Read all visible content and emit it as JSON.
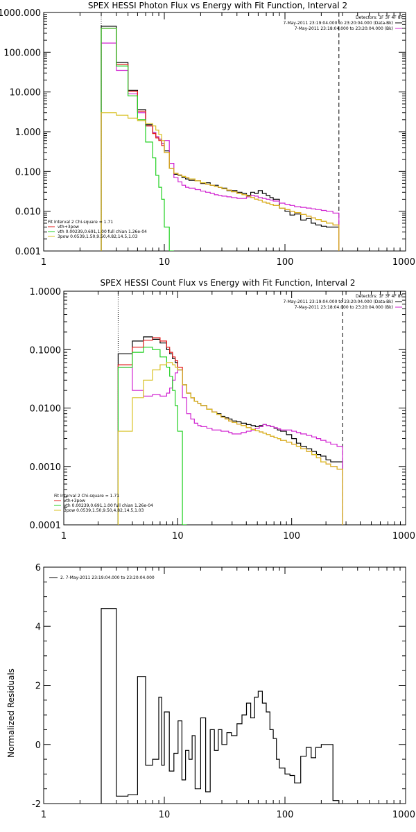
{
  "chart_data": [
    {
      "type": "line",
      "title": "SPEX HESSI Photon Flux vs Energy with Fit Function, Interval 2",
      "xscale": "log",
      "yscale": "log",
      "xlim": [
        1,
        1000
      ],
      "ylim": [
        0.001,
        1000
      ],
      "x_ticks": [
        1,
        10,
        100,
        1000
      ],
      "x_tick_labels": [
        "1",
        "10",
        "100",
        "1000"
      ],
      "y_ticks": [
        0.001,
        0.01,
        0.1,
        1,
        10,
        100,
        1000
      ],
      "y_tick_labels": [
        "0.001",
        "0.010",
        "0.100",
        "1.000",
        "10.000",
        "100.000",
        "1000.000"
      ],
      "vlines": [
        {
          "x": 3,
          "style": "dotted"
        },
        {
          "x": 280,
          "style": "dashed"
        }
      ],
      "detectors_text": "Detectors: 1F 3F 4F 8F",
      "time_labels": [
        {
          "text": "7-May-2011 23:19:04.000 to 23:20:04.000 (Data-Bk)",
          "color": "#000000"
        },
        {
          "text": "7-May-2011 23:18:04.000 to 23:20:04.000 (Bk)",
          "color": "#d020d0"
        }
      ],
      "fit_header": "Fit Interval  2   Chi-square = 1.71",
      "legend": [
        {
          "label": "vth+3pow",
          "color": "#e01818"
        },
        {
          "label": "vth 0.00239,0.691,1.00  full chian 1.26e-04",
          "color": "#20d020"
        },
        {
          "label": "3pow 0.0539,1.50,9.50,4.82,14.5,1.03",
          "color": "#d8c020"
        }
      ],
      "bin_edges": [
        3,
        3.5,
        4,
        4.5,
        5,
        5.5,
        6,
        6.5,
        7,
        7.5,
        8,
        8.5,
        9,
        9.5,
        10,
        11,
        12,
        13,
        14,
        15,
        16,
        18,
        20,
        22,
        24,
        26,
        28,
        30,
        33,
        36,
        40,
        44,
        48,
        52,
        56,
        60,
        65,
        70,
        75,
        80,
        90,
        100,
        110,
        120,
        135,
        150,
        165,
        180,
        200,
        220,
        250,
        280
      ],
      "series": [
        {
          "name": "Data-Bk",
          "color": "#000000",
          "values": [
            450,
            450,
            55,
            55,
            11,
            11,
            3.6,
            3.6,
            1.5,
            1.5,
            0.95,
            0.75,
            0.65,
            0.5,
            0.33,
            0.12,
            0.085,
            0.08,
            0.07,
            0.065,
            0.06,
            0.058,
            0.05,
            0.052,
            0.045,
            0.045,
            0.04,
            0.038,
            0.033,
            0.033,
            0.03,
            0.028,
            0.025,
            0.03,
            0.028,
            0.033,
            0.028,
            0.025,
            0.022,
            0.02,
            0.012,
            0.01,
            0.008,
            0.0085,
            0.006,
            0.0065,
            0.005,
            0.0045,
            0.0042,
            0.004,
            0.004
          ]
        },
        {
          "name": "Bk",
          "color": "#d020d0",
          "values": [
            170,
            170,
            35,
            35,
            9,
            9,
            3,
            3,
            1.4,
            1.4,
            0.95,
            0.75,
            0.65,
            0.5,
            0.6,
            0.16,
            0.07,
            0.055,
            0.045,
            0.04,
            0.038,
            0.035,
            0.032,
            0.03,
            0.028,
            0.026,
            0.025,
            0.024,
            0.023,
            0.022,
            0.021,
            0.021,
            0.023,
            0.025,
            0.024,
            0.022,
            0.021,
            0.02,
            0.019,
            0.018,
            0.016,
            0.015,
            0.014,
            0.013,
            0.0125,
            0.012,
            0.0115,
            0.011,
            0.0105,
            0.01,
            0.009
          ]
        },
        {
          "name": "vth+3pow",
          "color": "#e01818",
          "values": [
            400,
            400,
            50,
            50,
            10.5,
            10.5,
            3.3,
            3.3,
            1.4,
            1.4,
            0.9,
            0.7,
            0.6,
            0.45,
            0.3,
            0.12,
            0.09,
            0.082,
            0.075,
            0.07,
            0.065,
            0.058,
            0.052,
            0.048,
            0.045,
            0.042,
            0.04,
            0.037,
            0.034,
            0.031,
            0.028,
            0.026,
            0.024,
            0.022,
            0.02,
            0.019,
            0.017,
            0.016,
            0.015,
            0.014,
            0.012,
            0.011,
            0.01,
            0.0092,
            0.0083,
            0.0075,
            0.0068,
            0.0062,
            0.0056,
            0.005,
            0.0045
          ]
        },
        {
          "name": "vth",
          "color": "#20d020",
          "values": [
            400,
            400,
            45,
            45,
            8,
            8,
            2,
            2,
            0.55,
            0.55,
            0.22,
            0.08,
            0.04,
            0.02,
            0.004,
            0.001
          ]
        },
        {
          "name": "3pow",
          "color": "#d8c020",
          "values": [
            3,
            3,
            2.6,
            2.6,
            2.2,
            2.2,
            1.9,
            1.9,
            1.6,
            1.6,
            1.4,
            1.1,
            0.85,
            0.6,
            0.3,
            0.12,
            0.09,
            0.082,
            0.075,
            0.07,
            0.065,
            0.058,
            0.052,
            0.048,
            0.045,
            0.042,
            0.04,
            0.037,
            0.034,
            0.031,
            0.028,
            0.026,
            0.024,
            0.022,
            0.02,
            0.019,
            0.017,
            0.016,
            0.015,
            0.014,
            0.012,
            0.011,
            0.01,
            0.0092,
            0.0083,
            0.0075,
            0.0068,
            0.0062,
            0.0056,
            0.005,
            0.0045
          ]
        }
      ]
    },
    {
      "type": "line",
      "title": "SPEX HESSI Count Flux vs Energy with Fit Function, Interval 2",
      "xscale": "log",
      "yscale": "log",
      "xlim": [
        1,
        1000
      ],
      "ylim": [
        0.0001,
        1
      ],
      "x_ticks": [
        1,
        10,
        100,
        1000
      ],
      "x_tick_labels": [
        "1",
        "10",
        "100",
        "1000"
      ],
      "y_ticks": [
        0.0001,
        0.001,
        0.01,
        0.1,
        1
      ],
      "y_tick_labels": [
        "0.0001",
        "0.0010",
        "0.0100",
        "0.1000",
        "1.0000"
      ],
      "vlines": [
        {
          "x": 3,
          "style": "dotted"
        },
        {
          "x": 280,
          "style": "dashed"
        }
      ],
      "detectors_text": "Detectors: 1F 3F 4F 8F",
      "time_labels": [
        {
          "text": "7-May-2011 23:19:04.000 to 23:20:04.000 (Data-Bk)",
          "color": "#000000"
        },
        {
          "text": "7-May-2011 23:18:04.000 to 23:20:04.000 (Bk)",
          "color": "#d020d0"
        }
      ],
      "fit_header": "Fit Interval  2   Chi-square = 1.71",
      "legend": [
        {
          "label": "vth+3pow",
          "color": "#e01818"
        },
        {
          "label": "vth 0.00239,0.691,1.00  full chian 1.26e-04",
          "color": "#20d020"
        },
        {
          "label": "3pow 0.0539,1.50,9.50,4.82,14.5,1.03",
          "color": "#d8c020"
        }
      ],
      "bin_edges": [
        3,
        3.5,
        4,
        4.5,
        5,
        5.5,
        6,
        6.5,
        7,
        7.5,
        8,
        8.5,
        9,
        9.5,
        10,
        11,
        12,
        13,
        14,
        15,
        16,
        18,
        20,
        22,
        24,
        26,
        28,
        30,
        33,
        36,
        40,
        44,
        48,
        52,
        56,
        60,
        65,
        70,
        75,
        80,
        90,
        100,
        110,
        120,
        135,
        150,
        165,
        180,
        200,
        220,
        250,
        280
      ],
      "series": [
        {
          "name": "Data-Bk",
          "color": "#000000",
          "values": [
            0.085,
            0.085,
            0.14,
            0.14,
            0.165,
            0.165,
            0.15,
            0.15,
            0.13,
            0.13,
            0.1,
            0.085,
            0.07,
            0.06,
            0.045,
            0.025,
            0.018,
            0.015,
            0.013,
            0.012,
            0.011,
            0.0095,
            0.0085,
            0.008,
            0.0072,
            0.0068,
            0.0065,
            0.006,
            0.0058,
            0.0055,
            0.0052,
            0.005,
            0.0048,
            0.005,
            0.0052,
            0.005,
            0.0048,
            0.0045,
            0.0042,
            0.004,
            0.0035,
            0.003,
            0.0025,
            0.0022,
            0.002,
            0.0018,
            0.0016,
            0.0015,
            0.0013,
            0.0012,
            0.0012
          ]
        },
        {
          "name": "Bk",
          "color": "#d020d0",
          "values": [
            0.05,
            0.05,
            0.02,
            0.02,
            0.016,
            0.016,
            0.017,
            0.017,
            0.016,
            0.016,
            0.018,
            0.022,
            0.03,
            0.04,
            0.045,
            0.015,
            0.008,
            0.0065,
            0.0055,
            0.005,
            0.0048,
            0.0045,
            0.0042,
            0.0042,
            0.004,
            0.004,
            0.0038,
            0.0036,
            0.0036,
            0.0038,
            0.004,
            0.0042,
            0.0045,
            0.0048,
            0.0052,
            0.005,
            0.0048,
            0.0046,
            0.0044,
            0.0042,
            0.0042,
            0.004,
            0.0038,
            0.0036,
            0.0034,
            0.0032,
            0.003,
            0.0028,
            0.0026,
            0.0024,
            0.0022
          ]
        },
        {
          "name": "vth+3pow",
          "color": "#e01818",
          "values": [
            0.055,
            0.055,
            0.11,
            0.11,
            0.145,
            0.145,
            0.16,
            0.16,
            0.14,
            0.14,
            0.11,
            0.09,
            0.075,
            0.065,
            0.05,
            0.025,
            0.018,
            0.015,
            0.013,
            0.012,
            0.011,
            0.0095,
            0.0085,
            0.0078,
            0.007,
            0.0065,
            0.006,
            0.0057,
            0.0053,
            0.005,
            0.0046,
            0.0043,
            0.0041,
            0.0039,
            0.0037,
            0.0035,
            0.0033,
            0.0031,
            0.003,
            0.0028,
            0.0026,
            0.0024,
            0.0022,
            0.002,
            0.0018,
            0.0016,
            0.0014,
            0.0012,
            0.0011,
            0.001,
            0.0009
          ]
        },
        {
          "name": "vth",
          "color": "#20d020",
          "values": [
            0.05,
            0.05,
            0.09,
            0.09,
            0.11,
            0.11,
            0.1,
            0.1,
            0.075,
            0.075,
            0.05,
            0.035,
            0.02,
            0.011,
            0.004,
            0.0001
          ]
        },
        {
          "name": "3pow",
          "color": "#d8c020",
          "values": [
            0.004,
            0.004,
            0.015,
            0.015,
            0.03,
            0.03,
            0.045,
            0.045,
            0.055,
            0.055,
            0.06,
            0.06,
            0.055,
            0.05,
            0.045,
            0.025,
            0.018,
            0.015,
            0.013,
            0.012,
            0.011,
            0.0095,
            0.0085,
            0.0078,
            0.007,
            0.0065,
            0.006,
            0.0057,
            0.0053,
            0.005,
            0.0046,
            0.0043,
            0.0041,
            0.0039,
            0.0037,
            0.0035,
            0.0033,
            0.0031,
            0.003,
            0.0028,
            0.0026,
            0.0024,
            0.0022,
            0.002,
            0.0018,
            0.0016,
            0.0014,
            0.0012,
            0.0011,
            0.001,
            0.0009
          ]
        }
      ]
    },
    {
      "type": "line",
      "title": "",
      "ylabel": "Normalized Residuals",
      "xscale": "log",
      "yscale": "linear",
      "xlim": [
        1,
        1000
      ],
      "ylim": [
        -2,
        6
      ],
      "x_ticks": [
        1,
        10,
        100,
        1000
      ],
      "x_tick_labels": [
        "1",
        "10",
        "100",
        "1000"
      ],
      "y_ticks": [
        -2,
        0,
        2,
        4,
        6
      ],
      "y_tick_labels": [
        "-2",
        "0",
        "2",
        "4",
        "6"
      ],
      "legend": [
        {
          "label": "2. 7-May-2011 23:19:04.000 to 23:20:04.000",
          "color": "#000000"
        }
      ],
      "bin_edges": [
        3,
        4,
        5,
        6,
        6.5,
        7,
        7.5,
        8,
        8.5,
        9,
        9.5,
        10,
        11,
        12,
        13,
        14,
        15,
        16,
        17,
        18,
        20,
        22,
        24,
        26,
        28,
        30,
        33,
        36,
        40,
        44,
        48,
        52,
        56,
        60,
        65,
        70,
        75,
        80,
        85,
        90,
        100,
        110,
        120,
        135,
        150,
        165,
        180,
        200,
        220,
        250,
        280
      ],
      "series": [
        {
          "name": "Residuals",
          "color": "#000000",
          "values": [
            4.6,
            -1.75,
            -1.7,
            2.3,
            2.3,
            -0.7,
            -0.7,
            -0.5,
            -0.5,
            1.6,
            -0.7,
            1.1,
            -0.9,
            -0.3,
            0.8,
            -1.2,
            -0.2,
            -0.5,
            0.3,
            -1.5,
            0.9,
            -1.6,
            0.5,
            -0.2,
            0.5,
            0.0,
            0.4,
            0.3,
            0.7,
            1.0,
            1.4,
            0.9,
            1.6,
            1.8,
            1.4,
            1.1,
            0.5,
            0.2,
            -0.5,
            -0.8,
            -1.0,
            -1.05,
            -1.3,
            -0.4,
            -0.1,
            -0.45,
            -0.1,
            0.0,
            0.0,
            -1.9
          ]
        }
      ]
    }
  ]
}
